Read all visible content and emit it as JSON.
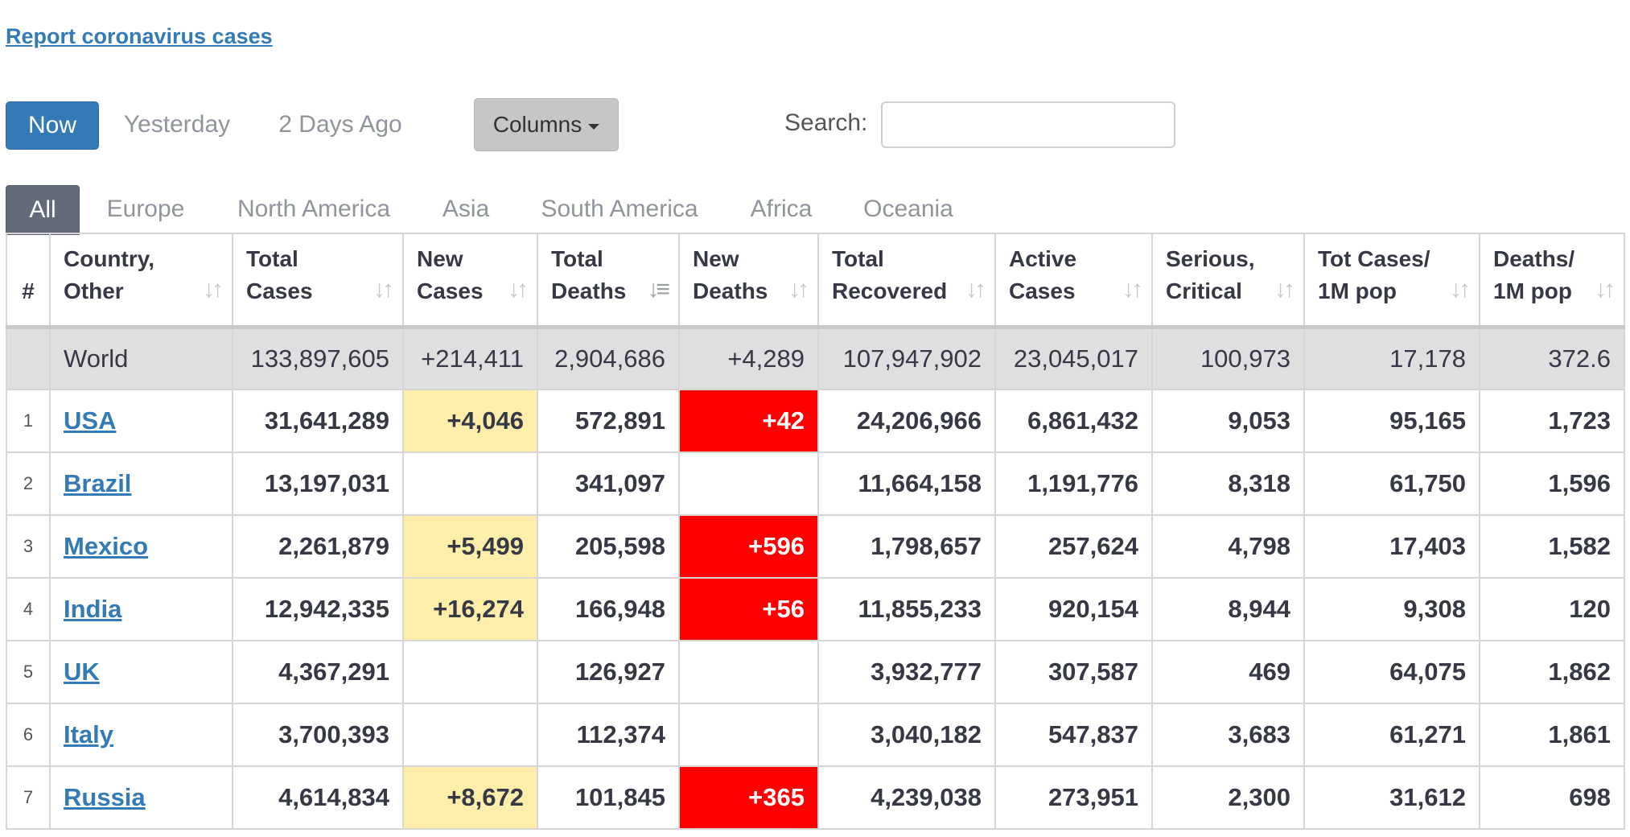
{
  "report_link": "Report coronavirus cases",
  "day_tabs": [
    "Now",
    "Yesterday",
    "2 Days Ago"
  ],
  "columns_label": "Columns",
  "search": {
    "label": "Search:",
    "value": ""
  },
  "region_tabs": [
    "All",
    "Europe",
    "North America",
    "Asia",
    "South America",
    "Africa",
    "Oceania"
  ],
  "headers": {
    "rank": "#",
    "country_1": "Country,",
    "country_2": "Other",
    "total_cases_1": "Total",
    "total_cases_2": "Cases",
    "new_cases_1": "New",
    "new_cases_2": "Cases",
    "total_deaths_1": "Total",
    "total_deaths_2": "Deaths",
    "new_deaths_1": "New",
    "new_deaths_2": "Deaths",
    "total_recovered_1": "Total",
    "total_recovered_2": "Recovered",
    "active_1": "Active",
    "active_2": "Cases",
    "serious_1": "Serious,",
    "serious_2": "Critical",
    "totcases_pop_1": "Tot Cases/",
    "totcases_pop_2": "1M pop",
    "deaths_pop_1": "Deaths/",
    "deaths_pop_2": "1M pop"
  },
  "world": {
    "country": "World",
    "total_cases": "133,897,605",
    "new_cases": "+214,411",
    "total_deaths": "2,904,686",
    "new_deaths": "+4,289",
    "total_recovered": "107,947,902",
    "active": "23,045,017",
    "serious": "100,973",
    "tot_cases_1m": "17,178",
    "deaths_1m": "372.6"
  },
  "rows": [
    {
      "rank": "1",
      "country": "USA",
      "total_cases": "31,641,289",
      "new_cases": "+4,046",
      "total_deaths": "572,891",
      "new_deaths": "+42",
      "total_recovered": "24,206,966",
      "active": "6,861,432",
      "serious": "9,053",
      "tot_cases_1m": "95,165",
      "deaths_1m": "1,723"
    },
    {
      "rank": "2",
      "country": "Brazil",
      "total_cases": "13,197,031",
      "new_cases": "",
      "total_deaths": "341,097",
      "new_deaths": "",
      "total_recovered": "11,664,158",
      "active": "1,191,776",
      "serious": "8,318",
      "tot_cases_1m": "61,750",
      "deaths_1m": "1,596"
    },
    {
      "rank": "3",
      "country": "Mexico",
      "total_cases": "2,261,879",
      "new_cases": "+5,499",
      "total_deaths": "205,598",
      "new_deaths": "+596",
      "total_recovered": "1,798,657",
      "active": "257,624",
      "serious": "4,798",
      "tot_cases_1m": "17,403",
      "deaths_1m": "1,582"
    },
    {
      "rank": "4",
      "country": "India",
      "total_cases": "12,942,335",
      "new_cases": "+16,274",
      "total_deaths": "166,948",
      "new_deaths": "+56",
      "total_recovered": "11,855,233",
      "active": "920,154",
      "serious": "8,944",
      "tot_cases_1m": "9,308",
      "deaths_1m": "120"
    },
    {
      "rank": "5",
      "country": "UK",
      "total_cases": "4,367,291",
      "new_cases": "",
      "total_deaths": "126,927",
      "new_deaths": "",
      "total_recovered": "3,932,777",
      "active": "307,587",
      "serious": "469",
      "tot_cases_1m": "64,075",
      "deaths_1m": "1,862"
    },
    {
      "rank": "6",
      "country": "Italy",
      "total_cases": "3,700,393",
      "new_cases": "",
      "total_deaths": "112,374",
      "new_deaths": "",
      "total_recovered": "3,040,182",
      "active": "547,837",
      "serious": "3,683",
      "tot_cases_1m": "61,271",
      "deaths_1m": "1,861"
    },
    {
      "rank": "7",
      "country": "Russia",
      "total_cases": "4,614,834",
      "new_cases": "+8,672",
      "total_deaths": "101,845",
      "new_deaths": "+365",
      "total_recovered": "4,239,038",
      "active": "273,951",
      "serious": "2,300",
      "tot_cases_1m": "31,612",
      "deaths_1m": "698"
    }
  ],
  "colors": {
    "link": "#337ab7",
    "new_cases_highlight": "#ffeeaa",
    "new_deaths_highlight": "#ff0000",
    "active_tab": "#636a79"
  }
}
